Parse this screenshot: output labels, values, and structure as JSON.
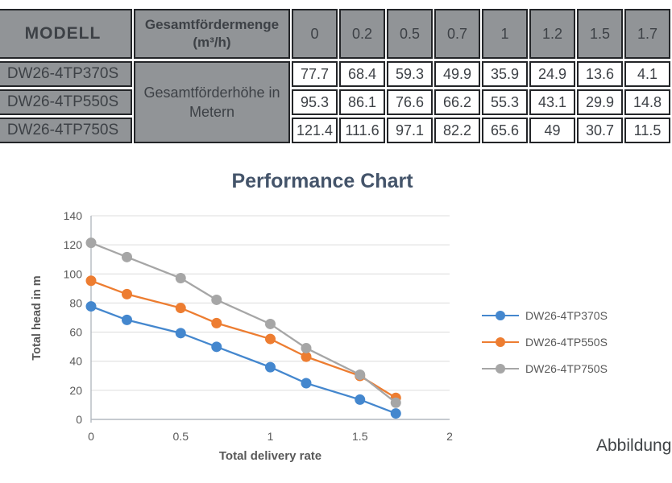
{
  "table": {
    "model_header": "MODELL",
    "flow_header_line1": "Gesamtfördermenge",
    "flow_header_line2": "(m³/h)",
    "flow_values": [
      "0",
      "0.2",
      "0.5",
      "0.7",
      "1",
      "1.2",
      "1.5",
      "1.7"
    ],
    "head_header": "Gesamtförderhöhe in Metern",
    "rows": [
      {
        "model": "DW26-4TP370S",
        "heads": [
          "77.7",
          "68.4",
          "59.3",
          "49.9",
          "35.9",
          "24.9",
          "13.6",
          "4.1"
        ]
      },
      {
        "model": "DW26-4TP550S",
        "heads": [
          "95.3",
          "86.1",
          "76.6",
          "66.2",
          "55.3",
          "43.1",
          "29.9",
          "14.8"
        ]
      },
      {
        "model": "DW26-4TP750S",
        "heads": [
          "121.4",
          "111.6",
          "97.1",
          "82.2",
          "65.6",
          "49",
          "30.7",
          "11.5"
        ]
      }
    ]
  },
  "chart_data": {
    "type": "line",
    "title": "Performance Chart",
    "xlabel": "Total delivery rate",
    "ylabel": "Total head in m",
    "x": [
      0,
      0.2,
      0.5,
      0.7,
      1,
      1.2,
      1.5,
      1.7
    ],
    "series": [
      {
        "name": "DW26-4TP370S",
        "color": "#4487CE",
        "values": [
          77.7,
          68.4,
          59.3,
          49.9,
          35.9,
          24.9,
          13.6,
          4.1
        ]
      },
      {
        "name": "DW26-4TP550S",
        "color": "#ED7D31",
        "values": [
          95.3,
          86.1,
          76.6,
          66.2,
          55.3,
          43.1,
          29.9,
          14.8
        ]
      },
      {
        "name": "DW26-4TP750S",
        "color": "#A6A6A6",
        "values": [
          121.4,
          111.6,
          97.1,
          82.2,
          65.6,
          49,
          30.7,
          11.5
        ]
      }
    ],
    "xlim": [
      0,
      2
    ],
    "ylim": [
      0,
      140
    ],
    "x_ticks": [
      "0",
      "0.5",
      "1",
      "1.5",
      "2"
    ],
    "y_ticks": [
      0,
      20,
      40,
      60,
      80,
      100,
      120,
      140
    ],
    "grid": "horizontal",
    "legend_position": "right"
  },
  "caption": "Abbildung",
  "colors": {
    "title": "#44546A",
    "axis_text": "#595959",
    "gridline": "#DCDCDC",
    "axis_line": "#B3B9C0",
    "table_gray": "#919497",
    "table_border": "#232528",
    "model_header_text": "#FFFFFF"
  }
}
